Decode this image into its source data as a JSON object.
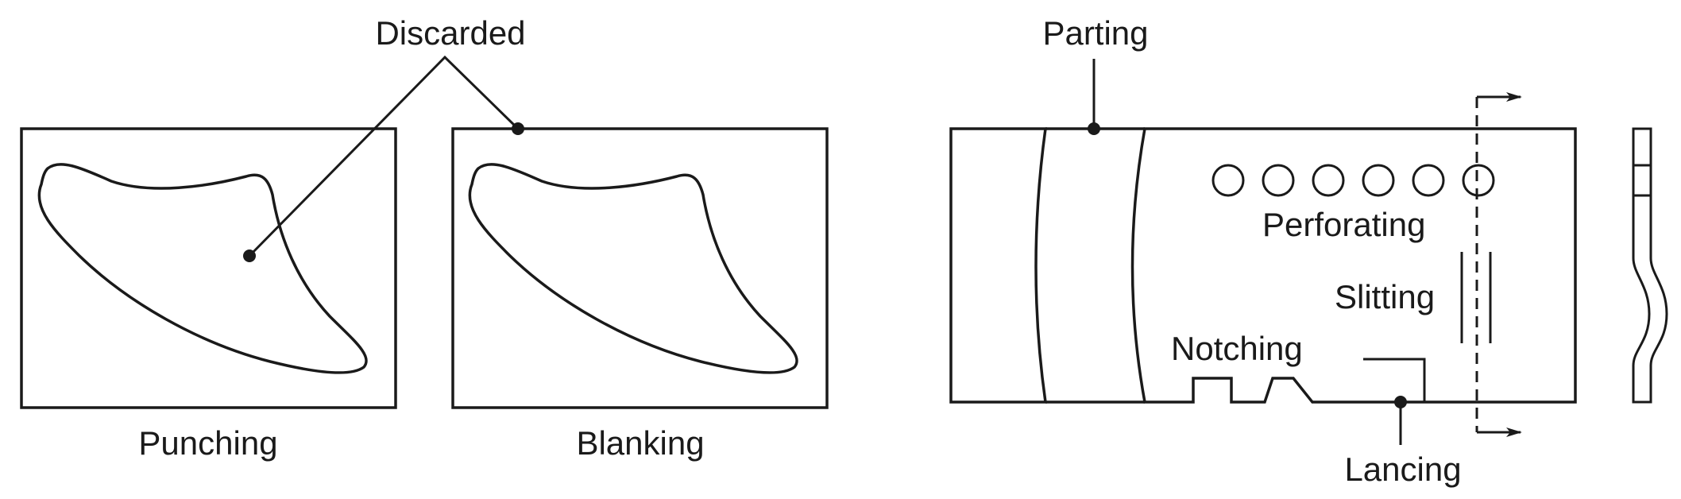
{
  "labels": {
    "discarded": "Discarded",
    "punching": "Punching",
    "blanking": "Blanking",
    "parting": "Parting",
    "perforating": "Perforating",
    "slitting": "Slitting",
    "notching": "Notching",
    "lancing": "Lancing"
  },
  "colors": {
    "green": "#7bb56e",
    "red": "#d35f5c",
    "metal_light": "#fbf1c8",
    "metal_mid": "#c79f46",
    "metal_dark": "#b89040",
    "ink": "#1a1a1a"
  }
}
